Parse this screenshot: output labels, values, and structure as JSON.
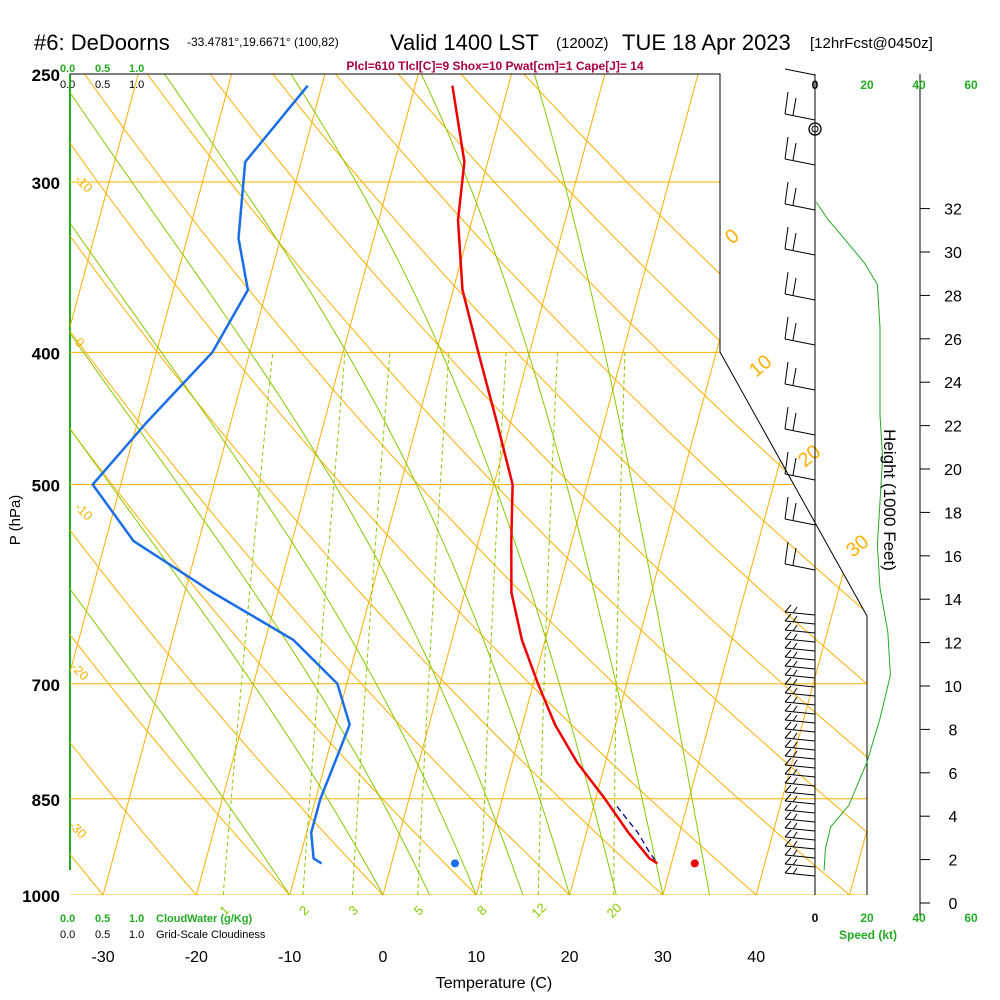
{
  "header": {
    "site": "#6: DeDoorns",
    "coords": "-33.4781°,19.6671° (100,82)",
    "valid": "Valid 1400 LST",
    "zulu": "(1200Z)",
    "date": "TUE 18 Apr 2023",
    "forecast": "[12hrFcst@0450z]",
    "indices": "Plcl=610 Tlcl[C]=9 Shox=10 Pwat[cm]=1 Cape[J]= 14"
  },
  "colors": {
    "isotherm": "#ffb000",
    "dry_adiabat": "#ffb000",
    "moist_adiabat": "#88c800",
    "mixing_ratio": "#88c800",
    "temperature": "#ee0000",
    "dewpoint": "#1a6ee8",
    "parcel": "#000088",
    "speed_curve": "#22aa22",
    "indices_text": "#aa0044",
    "cloud_label": "#22aa22"
  },
  "cloud_scales": {
    "cloudwater_ticks": [
      "0.0",
      "0.5",
      "1.0"
    ],
    "cloudwater_label": "CloudWater (g/Kg)",
    "cloudiness_ticks": [
      "0.0",
      "0.5",
      "1.0"
    ],
    "cloudiness_label": "Grid-Scale Cloudiness"
  },
  "chart_data": {
    "type": "skew-t",
    "xlabel": "Temperature (C)",
    "ylabel": "P (hPa)",
    "right_axis_label": "Height (1000 Feet)",
    "speed_axis_label": "Speed (kt)",
    "x_ticks": [
      -30,
      -20,
      -10,
      0,
      10,
      20,
      30,
      40
    ],
    "pressure_ticks": [
      250,
      300,
      400,
      500,
      700,
      850,
      1000
    ],
    "height_ticks": [
      0,
      2,
      4,
      6,
      8,
      10,
      12,
      14,
      16,
      18,
      20,
      22,
      24,
      26,
      28,
      30,
      32
    ],
    "speed_ticks": [
      0,
      20,
      40,
      60
    ],
    "xlim": [
      -34,
      36
    ],
    "ylim_hpa": [
      1000,
      250
    ],
    "dry_adiabat_labels": [
      "0",
      "10",
      "20",
      "30"
    ],
    "left_isotherm_labels": [
      "-10",
      "0",
      "-10",
      "-20",
      "-30"
    ],
    "mixing_ratio_labels": [
      "1",
      "2",
      "3",
      "5",
      "8",
      "12",
      "20"
    ],
    "temperature_profile": [
      {
        "p": 255,
        "t": -16.0
      },
      {
        "p": 290,
        "t": -12.5
      },
      {
        "p": 320,
        "t": -11.5
      },
      {
        "p": 360,
        "t": -9.0
      },
      {
        "p": 400,
        "t": -5.5
      },
      {
        "p": 450,
        "t": -1.5
      },
      {
        "p": 500,
        "t": 2.0
      },
      {
        "p": 550,
        "t": 3.5
      },
      {
        "p": 600,
        "t": 5.0
      },
      {
        "p": 650,
        "t": 7.5
      },
      {
        "p": 700,
        "t": 10.5
      },
      {
        "p": 750,
        "t": 13.5
      },
      {
        "p": 800,
        "t": 17.0
      },
      {
        "p": 850,
        "t": 21.0
      },
      {
        "p": 900,
        "t": 24.5
      },
      {
        "p": 940,
        "t": 27.5
      },
      {
        "p": 948,
        "t": 28.5
      }
    ],
    "parcel_profile": [
      {
        "p": 861,
        "t": 22.5
      },
      {
        "p": 900,
        "t": 25.5
      },
      {
        "p": 930,
        "t": 27.3
      },
      {
        "p": 948,
        "t": 28.5
      }
    ],
    "dewpoint_profile": [
      {
        "p": 255,
        "t": -31.5
      },
      {
        "p": 290,
        "t": -36.0
      },
      {
        "p": 330,
        "t": -34.5
      },
      {
        "p": 360,
        "t": -32.0
      },
      {
        "p": 400,
        "t": -34.0
      },
      {
        "p": 450,
        "t": -39.0
      },
      {
        "p": 500,
        "t": -43.0
      },
      {
        "p": 550,
        "t": -37.0
      },
      {
        "p": 600,
        "t": -27.0
      },
      {
        "p": 650,
        "t": -17.0
      },
      {
        "p": 700,
        "t": -11.0
      },
      {
        "p": 750,
        "t": -8.5
      },
      {
        "p": 800,
        "t": -9.0
      },
      {
        "p": 850,
        "t": -9.5
      },
      {
        "p": 900,
        "t": -9.5
      },
      {
        "p": 940,
        "t": -8.5
      },
      {
        "p": 948,
        "t": -7.5
      }
    ],
    "surface_temperature_point": {
      "p": 948,
      "t": 32.5
    },
    "surface_dewpoint_point": {
      "p": 948,
      "t": 6.8
    },
    "wind_speed_curve": [
      {
        "h": 1.5,
        "s": 3.5
      },
      {
        "h": 2.5,
        "s": 4.0
      },
      {
        "h": 3.5,
        "s": 6.0
      },
      {
        "h": 4.5,
        "s": 13.0
      },
      {
        "h": 6.5,
        "s": 20.0
      },
      {
        "h": 8.5,
        "s": 25.0
      },
      {
        "h": 10.5,
        "s": 29.0
      },
      {
        "h": 12.5,
        "s": 28.0
      },
      {
        "h": 14.5,
        "s": 25.0
      },
      {
        "h": 16.5,
        "s": 24.0
      },
      {
        "h": 18.5,
        "s": 25.0
      },
      {
        "h": 20.5,
        "s": 26.0
      },
      {
        "h": 22.5,
        "s": 25.0
      },
      {
        "h": 24.5,
        "s": 25.0
      },
      {
        "h": 26.5,
        "s": 25.0
      },
      {
        "h": 28.5,
        "s": 24.0
      },
      {
        "h": 29.5,
        "s": 19.0
      },
      {
        "h": 30.5,
        "s": 12.0
      },
      {
        "h": 31.5,
        "s": 5.0
      },
      {
        "h": 32.3,
        "s": 0.5
      }
    ]
  }
}
